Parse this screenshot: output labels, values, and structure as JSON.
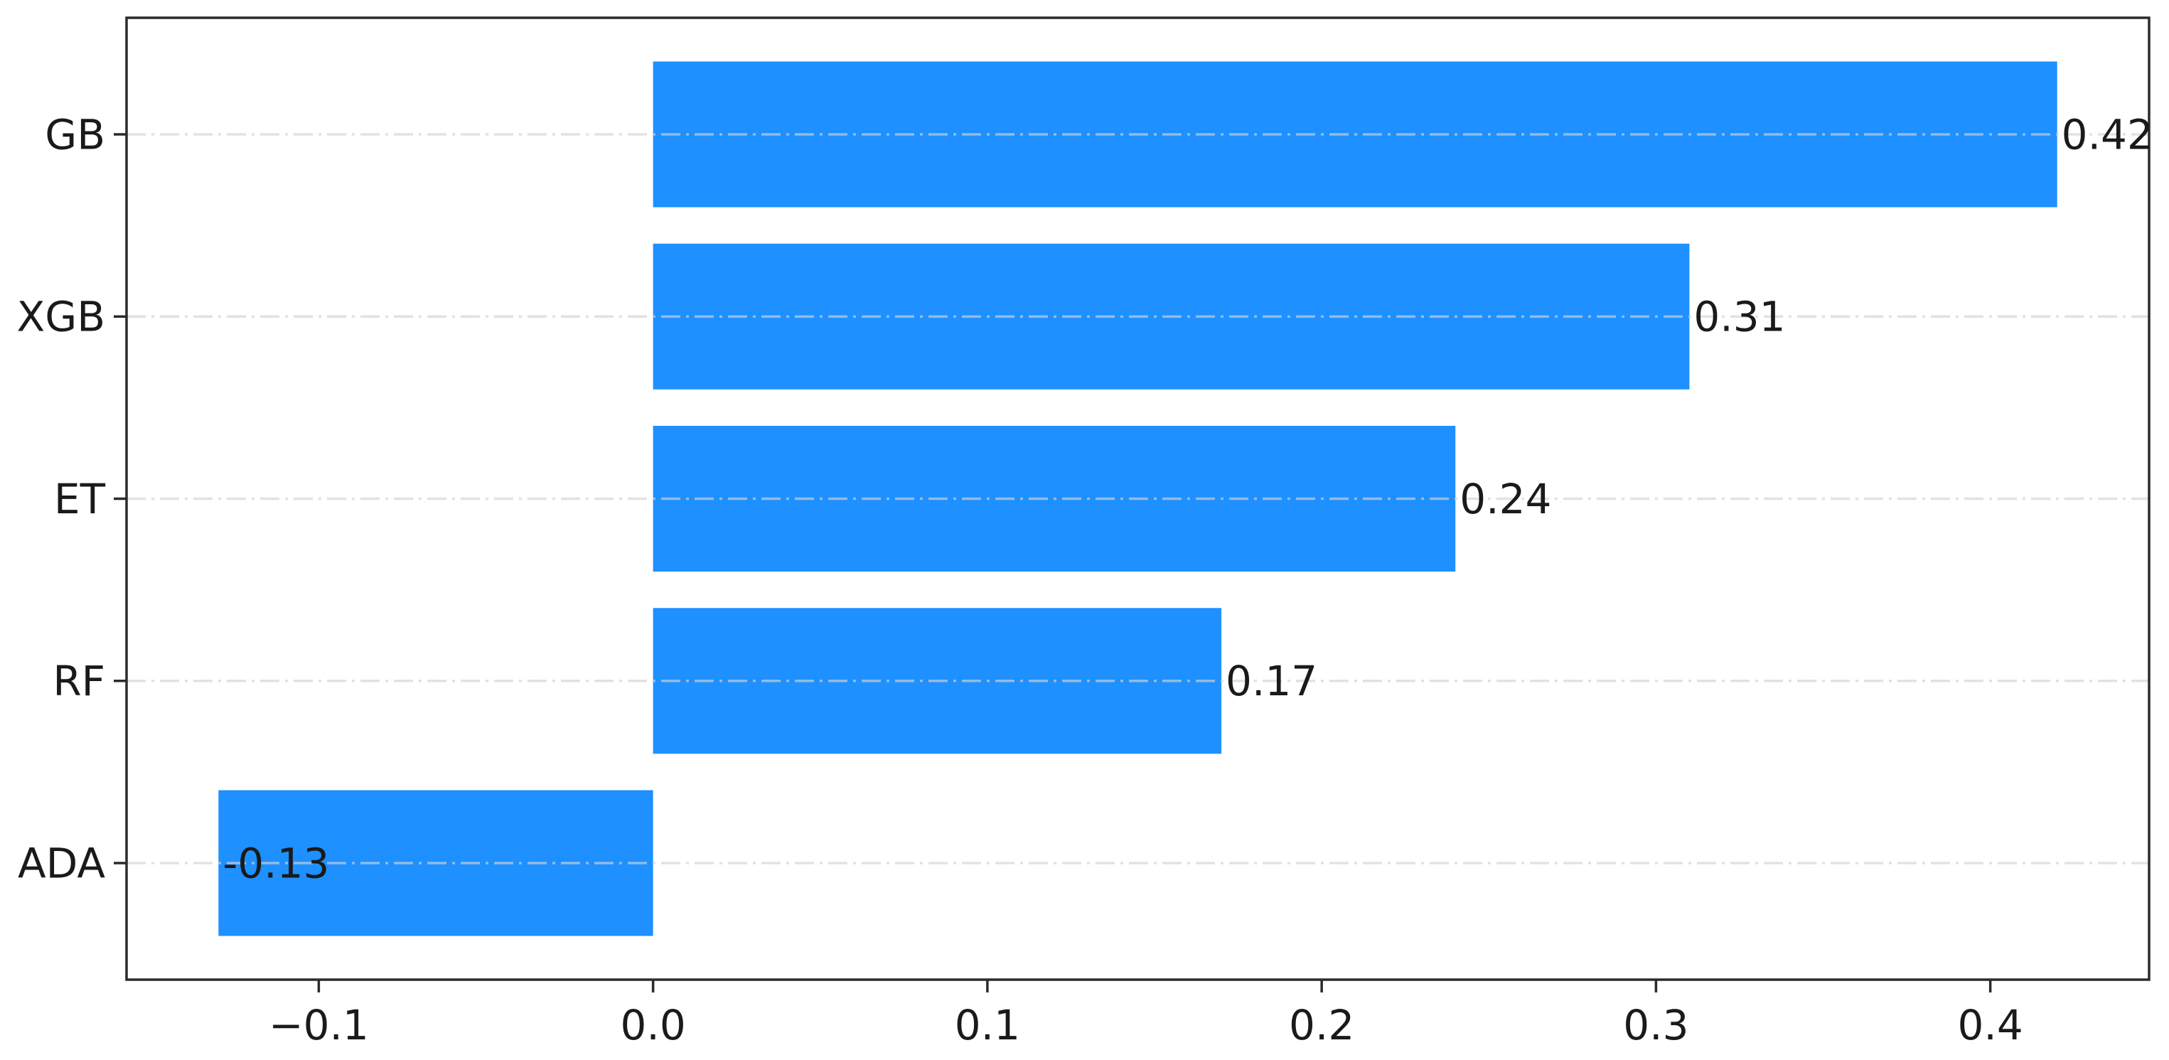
{
  "chart_data": {
    "type": "bar",
    "orientation": "horizontal",
    "title": "",
    "xlabel": "",
    "ylabel": "",
    "legend": "none",
    "grid": {
      "axis": "y",
      "style": "dash-dot",
      "drawn_over_bars": true
    },
    "categories": [
      "GB",
      "XGB",
      "ET",
      "RF",
      "ADA"
    ],
    "values": [
      0.42,
      0.31,
      0.24,
      0.17,
      -0.13
    ],
    "bar_labels": [
      "0.42",
      "0.31",
      "0.24",
      "0.17",
      "-0.13"
    ],
    "x_ticks": [
      {
        "value": -0.1,
        "label": "−0.1"
      },
      {
        "value": 0.0,
        "label": "0.0"
      },
      {
        "value": 0.1,
        "label": "0.1"
      },
      {
        "value": 0.2,
        "label": "0.2"
      },
      {
        "value": 0.3,
        "label": "0.3"
      },
      {
        "value": 0.4,
        "label": "0.4"
      }
    ],
    "xlim": [
      -0.1575,
      0.4475
    ],
    "colors": {
      "bar": "#1E90FF",
      "spine": "#2B2B2B",
      "grid": "#D3D3D3",
      "text": "#1A1A1A",
      "background": "#FFFFFF"
    }
  }
}
